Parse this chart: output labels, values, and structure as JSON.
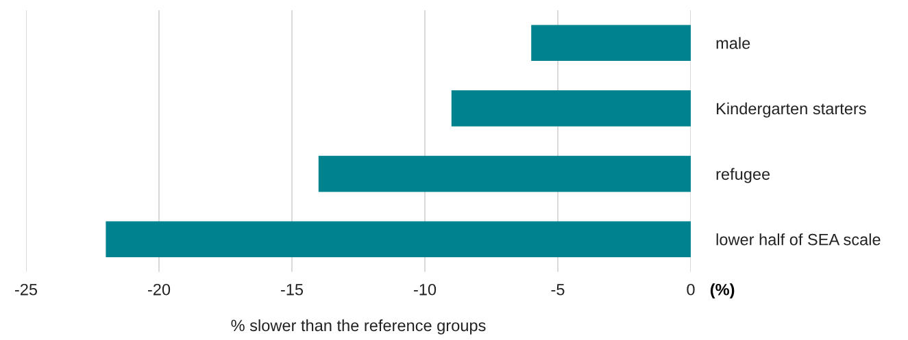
{
  "chart_data": {
    "type": "bar",
    "orientation": "horizontal",
    "categories": [
      "male",
      "Kindergarten starters",
      "refugee",
      "lower half of SEA scale"
    ],
    "values": [
      -6,
      -9,
      -14,
      -22
    ],
    "color": "#00838f",
    "xlim": [
      -25,
      0
    ],
    "xticks": [
      -25,
      -20,
      -15,
      -10,
      -5,
      0
    ],
    "xlabel": "% slower than the reference groups",
    "annotations": [
      "(%)"
    ],
    "grid": "x",
    "legend": false
  }
}
